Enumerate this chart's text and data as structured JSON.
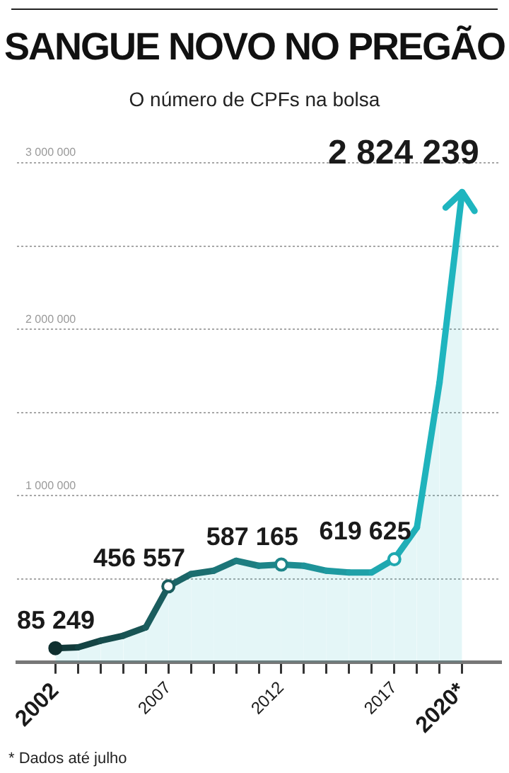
{
  "chart_data": {
    "type": "area",
    "title": "SANGUE NOVO NO PREGÃO",
    "subtitle": "O número de CPFs na bolsa",
    "annotations": [
      "* Dados até julho"
    ],
    "x": [
      2002,
      2003,
      2004,
      2005,
      2006,
      2007,
      2008,
      2009,
      2010,
      2011,
      2012,
      2013,
      2014,
      2015,
      2016,
      2017,
      2018,
      2019,
      2020
    ],
    "series": [
      {
        "color": "#1fb5bf",
        "colors": [
          "#0f2f2f",
          "#123a3a",
          "#144444",
          "#164c4c",
          "#185454",
          "#1a5d5e",
          "#1b6567",
          "#1c6d6f",
          "#1c7578",
          "#1d7d80",
          "#1d8589",
          "#1e8c91",
          "#1e9399",
          "#1e9aa1",
          "#1fa1a8",
          "#1fa8b0",
          "#1faeb7",
          "#1fb3bc",
          "#1fb5bf"
        ],
        "values": [
          85249,
          90000,
          130000,
          160000,
          210000,
          456557,
          530000,
          550000,
          610000,
          580000,
          587165,
          580000,
          550000,
          540000,
          540000,
          619625,
          810000,
          1680000,
          2824239
        ],
        "value_labels": [
          "85 249",
          null,
          null,
          null,
          null,
          "456 557",
          null,
          null,
          null,
          null,
          "587 165",
          null,
          null,
          null,
          null,
          "619 625",
          null,
          null,
          "2 824 239"
        ]
      }
    ],
    "xlim": [
      2000.3,
      2021.7
    ],
    "xticks": [
      {
        "value": 2002,
        "label": "2002"
      },
      {
        "value": 2003,
        "label": null
      },
      {
        "value": 2004,
        "label": null
      },
      {
        "value": 2005,
        "label": null
      },
      {
        "value": 2006,
        "label": null
      },
      {
        "value": 2007,
        "label": "2007"
      },
      {
        "value": 2008,
        "label": null
      },
      {
        "value": 2009,
        "label": null
      },
      {
        "value": 2010,
        "label": null
      },
      {
        "value": 2011,
        "label": null
      },
      {
        "value": 2012,
        "label": "2012"
      },
      {
        "value": 2013,
        "label": null
      },
      {
        "value": 2014,
        "label": null
      },
      {
        "value": 2015,
        "label": null
      },
      {
        "value": 2016,
        "label": null
      },
      {
        "value": 2017,
        "label": "2017"
      },
      {
        "value": 2018,
        "label": null
      },
      {
        "value": 2019,
        "label": null
      },
      {
        "value": 2020,
        "label": "2020*"
      }
    ],
    "ylim": [
      0,
      3000000
    ],
    "yticks": [
      {
        "value": 0,
        "label": null
      },
      {
        "value": 500000,
        "label": null
      },
      {
        "value": 1000000,
        "label": "1 000 000"
      },
      {
        "value": 1500000,
        "label": null
      },
      {
        "value": 2000000,
        "label": "2 000 000"
      },
      {
        "value": 2500000,
        "label": null
      },
      {
        "value": 3000000,
        "label": "3 000 000"
      }
    ],
    "grid": "y",
    "legend": false,
    "line_style": "solid"
  }
}
